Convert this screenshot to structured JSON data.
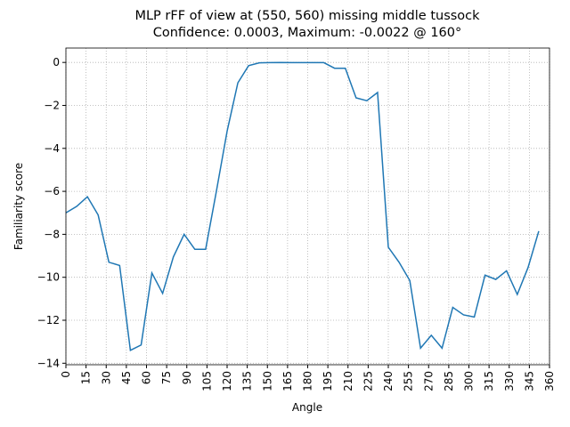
{
  "chart_data": {
    "type": "line",
    "title": "MLP rFF of view at (550, 560) missing middle tussock",
    "subtitle": "Confidence: 0.0003, Maximum: -0.0022 @ 160°",
    "x_label": "Angle",
    "y_label": "Familiarity score",
    "x": [
      0,
      8,
      16,
      24,
      32,
      40,
      48,
      56,
      64,
      72,
      80,
      88,
      96,
      104,
      112,
      120,
      128,
      136,
      144,
      152,
      160,
      168,
      176,
      184,
      192,
      200,
      208,
      216,
      224,
      232,
      240,
      248,
      256,
      264,
      272,
      280,
      288,
      296,
      304,
      312,
      320,
      328,
      336,
      344,
      352
    ],
    "series": [
      {
        "name": "score",
        "color": "#1f77b4",
        "values": [
          -7.0,
          -6.7,
          -6.25,
          -7.1,
          -9.3,
          -9.45,
          -13.4,
          -13.15,
          -9.8,
          -10.75,
          -9.05,
          -8.0,
          -8.7,
          -8.7,
          -6.0,
          -3.2,
          -0.95,
          -0.15,
          -0.02,
          -0.01,
          -0.0022,
          -0.01,
          -0.01,
          -0.01,
          -0.01,
          -0.27,
          -0.27,
          -1.65,
          -1.78,
          -1.4,
          -8.6,
          -9.3,
          -10.15,
          -13.3,
          -12.7,
          -13.3,
          -11.4,
          -11.75,
          -11.85,
          -9.9,
          -10.1,
          -9.7,
          -10.8,
          -9.55,
          -7.85
        ]
      }
    ],
    "xlim": [
      0,
      360
    ],
    "xticks": [
      0,
      15,
      30,
      45,
      60,
      75,
      90,
      105,
      120,
      135,
      150,
      165,
      180,
      195,
      210,
      225,
      240,
      255,
      270,
      285,
      300,
      315,
      330,
      345,
      360
    ],
    "ylim": [
      -14.07,
      0.67
    ],
    "yticks": [
      {
        "value": -14,
        "label": "−14"
      },
      {
        "value": -12,
        "label": "−12"
      },
      {
        "value": -10,
        "label": "−10"
      },
      {
        "value": -8,
        "label": "−8"
      },
      {
        "value": -6,
        "label": "−6"
      },
      {
        "value": -4,
        "label": "−4"
      },
      {
        "value": -2,
        "label": "−2"
      },
      0
    ],
    "grid": true
  }
}
